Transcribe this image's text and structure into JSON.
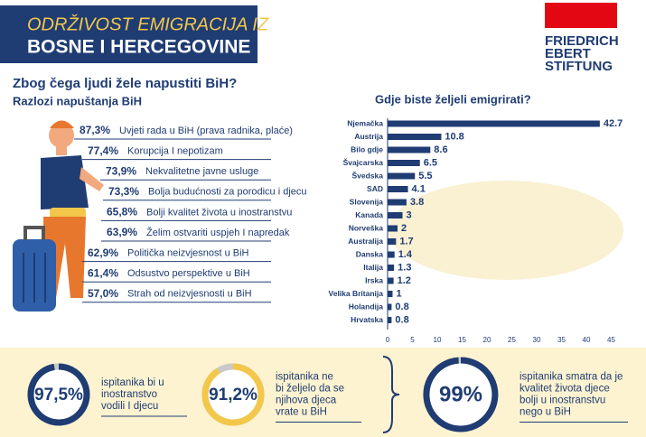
{
  "header": {
    "title_line1": "ODRŽIVOST EMIGRACIJA IZ",
    "title_line2": "BOSNE I HERCEGOVINE",
    "logo": [
      "FRIEDRICH",
      "EBERT",
      "STIFTUNG"
    ]
  },
  "question": "Zbog čega ljudi žele napustiti BiH?",
  "reasons": {
    "title": "Razlozi napuštanja BiH",
    "items": [
      {
        "percent": "87,3%",
        "text": "Uvjeti rada u BiH (prava radnika, plaće)"
      },
      {
        "percent": "77,4%",
        "text": "Korupcija I nepotizam"
      },
      {
        "percent": "73,9%",
        "text": "Nekvalitetne javne usluge"
      },
      {
        "percent": "73,3%",
        "text": "Bolja budućnosti za porodicu i djecu"
      },
      {
        "percent": "65,8%",
        "text": "Bolji kvalitet života u inostranstvu"
      },
      {
        "percent": "63,9%",
        "text": "Želim ostvariti uspjeh I napredak"
      },
      {
        "percent": "62,9%",
        "text": "Politička neizvjesnost u BiH"
      },
      {
        "percent": "61,4%",
        "text": "Odsustvo perspektive u BiH"
      },
      {
        "percent": "57,0%",
        "text": "Strah od neizvjesnosti u BiH"
      }
    ]
  },
  "chart_data": {
    "type": "bar",
    "orientation": "horizontal",
    "title": "Gdje biste željeli emigrirati?",
    "categories": [
      "Njemačka",
      "Austrija",
      "Bilo gdje",
      "Švajcarska",
      "Švedska",
      "SAD",
      "Slovenija",
      "Kanada",
      "Norveška",
      "Australija",
      "Danska",
      "Italija",
      "Irska",
      "Velika Britanija",
      "Holandija",
      "Hrvatska"
    ],
    "values": [
      42.7,
      10.8,
      8.6,
      6.5,
      5.5,
      4.1,
      3.8,
      3,
      2,
      1.7,
      1.4,
      1.3,
      1.2,
      1,
      0.8,
      0.8
    ],
    "color": "#1f3c73",
    "xlim": [
      0,
      45
    ],
    "xticks": [
      0,
      5,
      10,
      15,
      20,
      25,
      30,
      35,
      40,
      45
    ]
  },
  "stats": [
    {
      "value": 97.5,
      "label": "97,5%",
      "text": [
        "ispitanika bi u",
        "inostranstvo",
        "vodili I djecu"
      ]
    },
    {
      "value": 91.2,
      "label": "91,2%",
      "text": [
        "ispitanika ne",
        "bi željelo da se",
        "njihova djeca",
        "vrate u BiH"
      ]
    },
    {
      "value": 99,
      "label": "99%",
      "text": [
        "ispitanika smatra da je",
        "kvalitet života djece",
        "bolji u inostranstvu",
        "nego u BiH"
      ]
    }
  ]
}
